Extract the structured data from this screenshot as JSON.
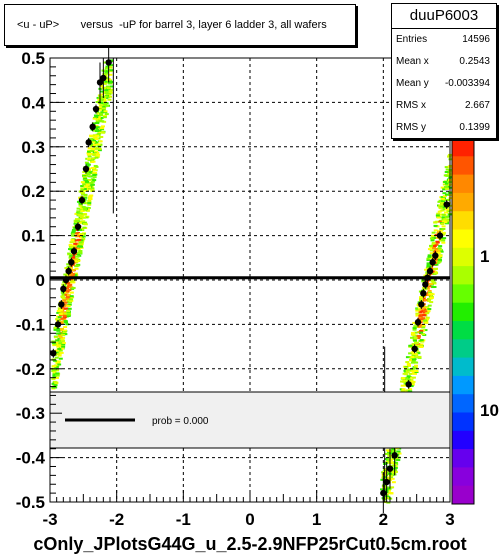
{
  "title": "<u - uP>       versus  -uP for barrel 3, layer 6 ladder 3, all wafers",
  "footer": "cOnly_JPlotsG44G_u_2.5-2.9NFP25rCut0.5cm.root",
  "stats": {
    "name": "duuP6003",
    "rows": [
      {
        "key": "Entries",
        "val": "14596"
      },
      {
        "key": "Mean x",
        "val": "0.2543"
      },
      {
        "key": "Mean y",
        "val": "-0.003394"
      },
      {
        "key": "RMS x",
        "val": "2.667"
      },
      {
        "key": "RMS y",
        "val": "0.1399"
      }
    ]
  },
  "legend": {
    "label": "prob = 0.000"
  },
  "colors": {
    "fit_line": "#000000",
    "grid": "#000000",
    "legend_bg": "#f0f0f0"
  },
  "chart_data": {
    "type": "scatter",
    "xlim": [
      -3,
      3
    ],
    "ylim": [
      -0.5,
      0.5
    ],
    "grid": true,
    "x_ticks": [
      "-3",
      "-2",
      "-1",
      "0",
      "1",
      "2",
      "3"
    ],
    "y_ticks": [
      "-0.5",
      "-0.4",
      "-0.3",
      "-0.2",
      "-0.1",
      "0",
      "0.1",
      "0.2",
      "0.3",
      "0.4",
      "0.5"
    ],
    "colorbar_labels": [
      "10",
      "1",
      "10"
    ],
    "fit_line_y": 0.005,
    "profile_points": [
      {
        "x": -2.95,
        "y": -0.165
      },
      {
        "x": -2.88,
        "y": -0.1
      },
      {
        "x": -2.83,
        "y": -0.055
      },
      {
        "x": -2.8,
        "y": -0.02
      },
      {
        "x": -2.76,
        "y": 0.0
      },
      {
        "x": -2.72,
        "y": 0.02
      },
      {
        "x": -2.68,
        "y": 0.04
      },
      {
        "x": -2.64,
        "y": 0.065
      },
      {
        "x": -2.58,
        "y": 0.12
      },
      {
        "x": -2.52,
        "y": 0.18
      },
      {
        "x": -2.46,
        "y": 0.25
      },
      {
        "x": -2.42,
        "y": 0.31
      },
      {
        "x": -2.36,
        "y": 0.345
      },
      {
        "x": -2.31,
        "y": 0.385
      },
      {
        "x": -2.25,
        "y": 0.445
      },
      {
        "x": -2.2,
        "y": 0.455
      },
      {
        "x": -2.12,
        "y": 0.49
      },
      {
        "x": 2.0,
        "y": -0.48
      },
      {
        "x": 2.05,
        "y": -0.455
      },
      {
        "x": 2.1,
        "y": -0.425
      },
      {
        "x": 2.17,
        "y": -0.395
      },
      {
        "x": 2.38,
        "y": -0.235
      },
      {
        "x": 2.47,
        "y": -0.155
      },
      {
        "x": 2.52,
        "y": -0.095
      },
      {
        "x": 2.57,
        "y": -0.055
      },
      {
        "x": 2.6,
        "y": -0.03
      },
      {
        "x": 2.63,
        "y": -0.01
      },
      {
        "x": 2.66,
        "y": 0.005
      },
      {
        "x": 2.7,
        "y": 0.02
      },
      {
        "x": 2.74,
        "y": 0.04
      },
      {
        "x": 2.78,
        "y": 0.055
      },
      {
        "x": 2.85,
        "y": 0.1
      },
      {
        "x": 2.95,
        "y": 0.17
      }
    ]
  }
}
